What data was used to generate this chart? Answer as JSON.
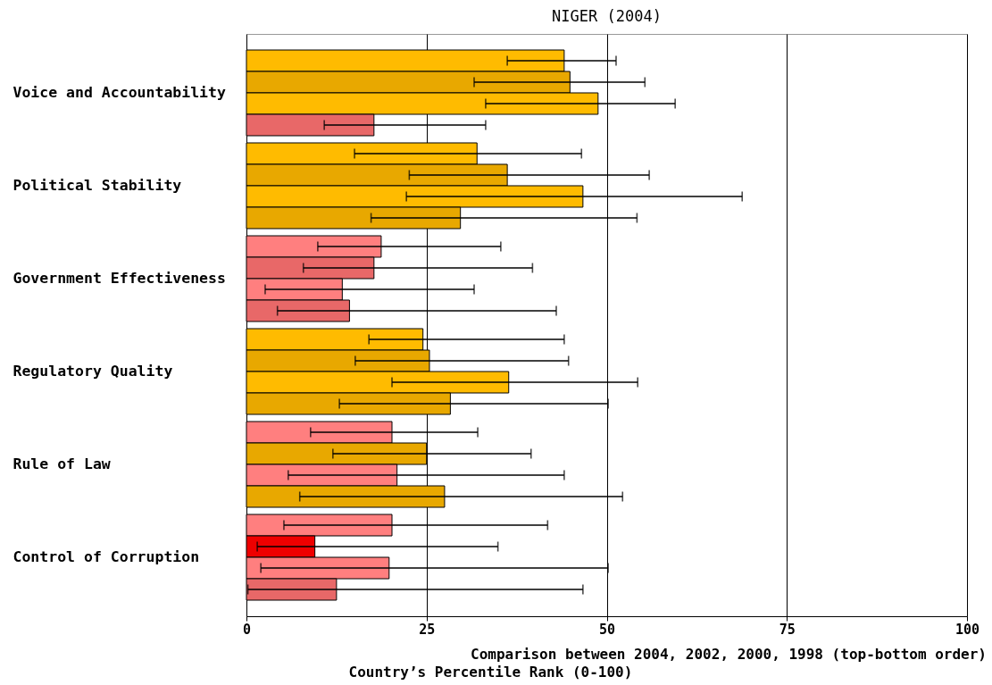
{
  "chart_data": {
    "type": "bar",
    "orientation": "horizontal",
    "title": "NIGER (2004)",
    "xlabel": "Country’s Percentile Rank (0-100)",
    "annotations": [
      "Comparison between 2004, 2002, 2000, 1998 (top-bottom order)"
    ],
    "categories": [
      "Voice and Accountability",
      "Political Stability",
      "Government Effectiveness",
      "Regulatory Quality",
      "Rule of Law",
      "Control of Corruption"
    ],
    "series": [
      {
        "values": [
          44.1,
          32.0,
          18.7,
          24.5,
          20.2,
          20.2
        ],
        "colors": [
          "#ffbb00",
          "#ffbb00",
          "#ff7f7f",
          "#ffbb00",
          "#ff7f7f",
          "#ff7f7f"
        ],
        "errors": [
          [
            36.2,
            51.3
          ],
          [
            15.0,
            46.5
          ],
          [
            9.9,
            35.3
          ],
          [
            17.0,
            44.1
          ],
          [
            8.9,
            32.1
          ],
          [
            5.2,
            41.8
          ]
        ]
      },
      {
        "values": [
          44.9,
          36.2,
          17.7,
          25.4,
          25.0,
          9.5
        ],
        "colors": [
          "#e8a800",
          "#e8a800",
          "#e86868",
          "#e8a800",
          "#e8a800",
          "#ee0000"
        ],
        "errors": [
          [
            31.6,
            55.3
          ],
          [
            22.6,
            55.9
          ],
          [
            7.9,
            39.7
          ],
          [
            15.1,
            44.7
          ],
          [
            12.0,
            39.5
          ],
          [
            1.5,
            34.9
          ]
        ]
      },
      {
        "values": [
          48.8,
          46.7,
          13.3,
          36.4,
          20.9,
          19.8
        ],
        "colors": [
          "#ffbb00",
          "#ffbb00",
          "#ff7f7f",
          "#ffbb00",
          "#ff7f7f",
          "#ff7f7f"
        ],
        "errors": [
          [
            33.2,
            59.5
          ],
          [
            22.2,
            68.8
          ],
          [
            2.6,
            31.6
          ],
          [
            20.2,
            54.3
          ],
          [
            5.8,
            44.1
          ],
          [
            2.0,
            50.2
          ]
        ]
      },
      {
        "values": [
          17.7,
          29.7,
          14.3,
          28.3,
          27.5,
          12.5
        ],
        "colors": [
          "#e86868",
          "#e8a800",
          "#e86868",
          "#e8a800",
          "#e8a800",
          "#e86868"
        ],
        "errors": [
          [
            10.8,
            33.2
          ],
          [
            17.3,
            54.2
          ],
          [
            4.3,
            43.0
          ],
          [
            12.9,
            50.2
          ],
          [
            7.4,
            52.2
          ],
          [
            0.2,
            46.7
          ]
        ]
      }
    ],
    "xlim": [
      0,
      100
    ],
    "xticks": [
      0,
      25,
      50,
      75,
      100
    ],
    "grid": "x"
  }
}
